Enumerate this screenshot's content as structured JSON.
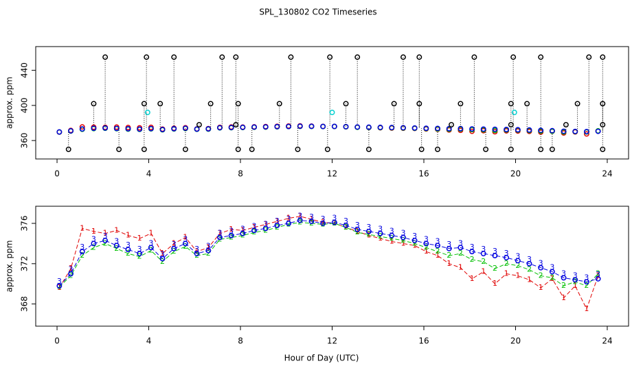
{
  "title": "SPL_130802  CO2 Timeseries",
  "xlabel": "Hour of Day (UTC)",
  "chart_data": [
    {
      "type": "scatter",
      "ylabel": "approx. ppm",
      "xlim": [
        -0.93,
        24.93
      ],
      "ylim": [
        339,
        467
      ],
      "xticks": [
        0,
        4,
        8,
        12,
        16,
        20,
        24
      ],
      "yticks": [
        360,
        400,
        440
      ],
      "x": [
        0.1,
        0.6,
        1.1,
        1.6,
        2.1,
        2.6,
        3.1,
        3.6,
        4.1,
        4.6,
        5.1,
        5.6,
        6.1,
        6.6,
        7.1,
        7.6,
        8.1,
        8.6,
        9.1,
        9.6,
        10.1,
        10.6,
        11.1,
        11.6,
        12.1,
        12.6,
        13.1,
        13.6,
        14.1,
        14.6,
        15.1,
        15.6,
        16.1,
        16.6,
        17.1,
        17.6,
        18.1,
        18.6,
        19.1,
        19.6,
        20.1,
        20.6,
        21.1,
        21.6,
        22.1,
        22.6,
        23.1,
        23.6
      ],
      "series": [
        {
          "color": "#e00000",
          "marker": "circle",
          "values": [
            369.6,
            371.5,
            375.5,
            375.2,
            375.0,
            375.3,
            374.8,
            374.5,
            375.0,
            373.0,
            374.0,
            374.6,
            373.2,
            373.6,
            375.0,
            375.4,
            375.3,
            375.6,
            375.9,
            376.2,
            376.5,
            376.7,
            376.4,
            376.1,
            376.0,
            375.6,
            375.2,
            374.8,
            374.5,
            374.2,
            374.0,
            373.8,
            373.2,
            372.8,
            372.0,
            371.6,
            370.5,
            371.2,
            370.0,
            371.0,
            370.8,
            370.4,
            369.6,
            370.5,
            368.6,
            369.8,
            367.5,
            370.8
          ]
        },
        {
          "color": "#00c000",
          "marker": "circle",
          "values": [
            369.7,
            370.8,
            372.8,
            373.6,
            374.0,
            373.5,
            373.0,
            372.7,
            373.3,
            372.2,
            373.2,
            373.7,
            372.8,
            373.0,
            374.4,
            374.6,
            374.8,
            375.1,
            375.3,
            375.6,
            375.9,
            376.1,
            376.0,
            375.9,
            376.0,
            375.6,
            375.1,
            374.9,
            374.7,
            374.5,
            374.3,
            374.0,
            373.6,
            373.2,
            372.8,
            373.0,
            372.4,
            372.2,
            371.5,
            372.0,
            371.8,
            371.4,
            370.8,
            370.6,
            369.8,
            370.2,
            369.8,
            371.0
          ]
        },
        {
          "color": "#0000e0",
          "marker": "circle",
          "values": [
            369.8,
            371.0,
            373.2,
            374.0,
            374.3,
            373.8,
            373.4,
            373.0,
            373.6,
            372.5,
            373.5,
            374.0,
            373.0,
            373.3,
            374.6,
            374.8,
            375.0,
            375.3,
            375.5,
            375.8,
            376.0,
            376.3,
            376.2,
            376.0,
            376.1,
            375.8,
            375.4,
            375.2,
            375.0,
            374.8,
            374.6,
            374.3,
            374.0,
            373.8,
            373.5,
            373.6,
            373.2,
            373.0,
            372.8,
            372.6,
            372.3,
            372.0,
            371.6,
            371.2,
            370.6,
            370.4,
            370.2,
            370.5
          ]
        },
        {
          "color": "#000000",
          "marker": "circle",
          "drop": true,
          "x": [
            2.1,
            3.9,
            5.1,
            7.2,
            7.8,
            10.2,
            11.9,
            13.1,
            15.1,
            15.8,
            18.2,
            19.9,
            21.1,
            23.2,
            23.8,
            1.6,
            3.8,
            4.5,
            6.7,
            7.9,
            9.7,
            12.6,
            14.7,
            15.8,
            17.6,
            19.8,
            20.5,
            22.7,
            23.8,
            0.5,
            2.7,
            3.8,
            5.6,
            7.9,
            8.5,
            10.5,
            11.8,
            13.6,
            15.9,
            16.6,
            18.7,
            19.8,
            21.1,
            21.6,
            23.8,
            6.2,
            7.8,
            17.2,
            19.8,
            22.2,
            23.8
          ],
          "values": [
            455,
            455,
            455,
            455,
            455,
            455,
            455,
            455,
            455,
            455,
            455,
            455,
            455,
            455,
            455,
            402,
            402,
            402,
            402,
            402,
            402,
            402,
            402,
            402,
            402,
            402,
            402,
            402,
            402,
            350,
            350,
            350,
            350,
            350,
            350,
            350,
            350,
            350,
            350,
            350,
            350,
            350,
            350,
            350,
            350,
            378,
            378,
            378,
            378,
            378,
            378
          ]
        },
        {
          "color": "#00d0d0",
          "marker": "circle",
          "x": [
            3.95,
            12.0,
            19.95
          ],
          "values": [
            392,
            392,
            392
          ]
        }
      ]
    },
    {
      "type": "line",
      "ylabel": "approx. ppm",
      "xlim": [
        -0.93,
        24.93
      ],
      "ylim": [
        365.8,
        377.7
      ],
      "xticks": [
        0,
        4,
        8,
        12,
        16,
        20,
        24
      ],
      "yticks": [
        368,
        372,
        376
      ],
      "x": [
        0.1,
        0.6,
        1.1,
        1.6,
        2.1,
        2.6,
        3.1,
        3.6,
        4.1,
        4.6,
        5.1,
        5.6,
        6.1,
        6.6,
        7.1,
        7.6,
        8.1,
        8.6,
        9.1,
        9.6,
        10.1,
        10.6,
        11.1,
        11.6,
        12.1,
        12.6,
        13.1,
        13.6,
        14.1,
        14.6,
        15.1,
        15.6,
        16.1,
        16.6,
        17.1,
        17.6,
        18.1,
        18.6,
        19.1,
        19.6,
        20.1,
        20.6,
        21.1,
        21.6,
        22.1,
        22.6,
        23.1,
        23.6
      ],
      "series": [
        {
          "color": "#e00000",
          "symbol": "1",
          "values": [
            369.6,
            371.5,
            375.5,
            375.2,
            375.0,
            375.3,
            374.8,
            374.5,
            375.0,
            373.0,
            374.0,
            374.6,
            373.2,
            373.6,
            375.0,
            375.4,
            375.3,
            375.6,
            375.9,
            376.2,
            376.5,
            376.7,
            376.4,
            376.1,
            376.0,
            375.6,
            375.2,
            374.8,
            374.5,
            374.2,
            374.0,
            373.8,
            373.2,
            372.8,
            372.0,
            371.6,
            370.5,
            371.2,
            370.0,
            371.0,
            370.8,
            370.4,
            369.6,
            370.5,
            368.6,
            369.8,
            367.5,
            370.8
          ]
        },
        {
          "color": "#00c000",
          "symbol": "2",
          "values": [
            369.7,
            370.8,
            372.8,
            373.6,
            374.0,
            373.5,
            373.0,
            372.7,
            373.3,
            372.2,
            373.2,
            373.7,
            372.8,
            373.0,
            374.4,
            374.6,
            374.8,
            375.1,
            375.3,
            375.6,
            375.9,
            376.1,
            376.0,
            375.9,
            376.0,
            375.6,
            375.1,
            374.9,
            374.7,
            374.5,
            374.3,
            374.0,
            373.6,
            373.2,
            372.8,
            373.0,
            372.4,
            372.2,
            371.5,
            372.0,
            371.8,
            371.4,
            370.8,
            370.6,
            369.8,
            370.2,
            369.8,
            371.0
          ]
        },
        {
          "color": "#0000e0",
          "symbol": "3",
          "marker": "circle",
          "values": [
            369.8,
            371.0,
            373.2,
            374.0,
            374.3,
            373.8,
            373.4,
            373.0,
            373.6,
            372.5,
            373.5,
            374.0,
            373.0,
            373.3,
            374.6,
            374.8,
            375.0,
            375.3,
            375.5,
            375.8,
            376.0,
            376.3,
            376.2,
            376.0,
            376.1,
            375.8,
            375.4,
            375.2,
            375.0,
            374.8,
            374.6,
            374.3,
            374.0,
            373.8,
            373.5,
            373.6,
            373.2,
            373.0,
            372.8,
            372.6,
            372.3,
            372.0,
            371.6,
            371.2,
            370.6,
            370.4,
            370.2,
            370.5
          ]
        }
      ]
    }
  ]
}
